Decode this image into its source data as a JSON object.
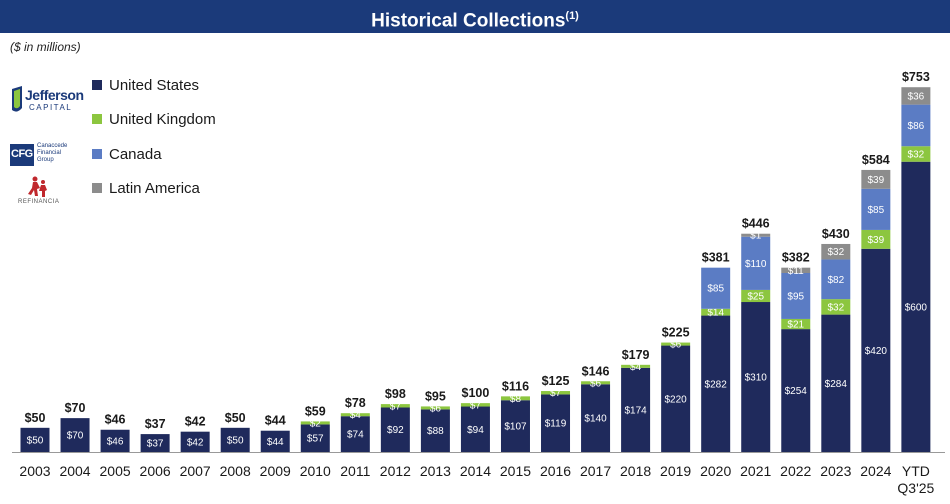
{
  "header": {
    "title": "Historical Collections",
    "title_sup": "(1)"
  },
  "subtitle": "($ in millions)",
  "logos": [
    {
      "name": "Jefferson Capital",
      "line1": "Jefferson",
      "line2": "CAPITAL"
    },
    {
      "name": "Canaccede Financial Group",
      "abbr": "CFG",
      "line1": "Canaccede",
      "line2": "Financial",
      "line3": "Group"
    },
    {
      "name": "Refinancia",
      "line1": "REFINANCIA"
    }
  ],
  "colors": {
    "title_bg": "#1b3a7a",
    "us": "#1f2a5c",
    "uk": "#8cc63f",
    "canada": "#5b7cc4",
    "latam": "#8c8c8c"
  },
  "chart_data": {
    "type": "bar",
    "stacked": true,
    "title": "Historical Collections",
    "ylabel": "$ in millions",
    "ylim": [
      0,
      800
    ],
    "legend_position": "top-left",
    "categories": [
      "2003",
      "2004",
      "2005",
      "2006",
      "2007",
      "2008",
      "2009",
      "2010",
      "2011",
      "2012",
      "2013",
      "2014",
      "2015",
      "2016",
      "2017",
      "2018",
      "2019",
      "2020",
      "2021",
      "2022",
      "2023",
      "2024",
      "YTD Q3'25"
    ],
    "series": [
      {
        "name": "United States",
        "values": [
          50,
          70,
          46,
          37,
          42,
          50,
          44,
          57,
          74,
          92,
          88,
          94,
          107,
          119,
          140,
          174,
          220,
          282,
          310,
          254,
          284,
          420,
          600
        ]
      },
      {
        "name": "United Kingdom",
        "values": [
          0,
          0,
          0,
          0,
          0,
          0,
          0,
          2,
          4,
          7,
          6,
          7,
          8,
          7,
          6,
          4,
          6,
          14,
          25,
          21,
          32,
          39,
          32
        ]
      },
      {
        "name": "Canada",
        "values": [
          0,
          0,
          0,
          0,
          0,
          0,
          0,
          0,
          0,
          0,
          0,
          0,
          0,
          0,
          0,
          0,
          0,
          85,
          110,
          95,
          82,
          85,
          86
        ]
      },
      {
        "name": "Latin America",
        "values": [
          0,
          0,
          0,
          0,
          0,
          0,
          0,
          0,
          0,
          0,
          0,
          0,
          0,
          0,
          0,
          0,
          0,
          0,
          1,
          11,
          32,
          39,
          36
        ]
      }
    ],
    "totals": [
      50,
      70,
      46,
      37,
      42,
      50,
      44,
      59,
      78,
      98,
      95,
      100,
      116,
      125,
      146,
      179,
      225,
      381,
      446,
      382,
      430,
      584,
      753
    ],
    "value_prefix": "$"
  }
}
